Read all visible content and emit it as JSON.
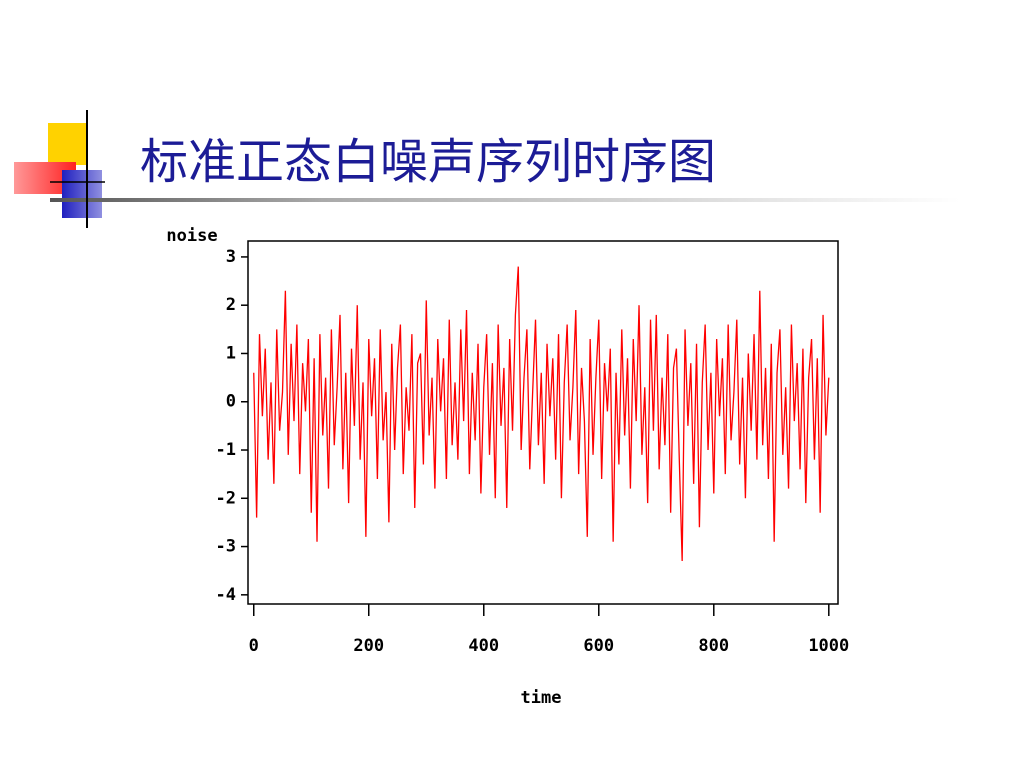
{
  "chart_data": {
    "type": "line",
    "title": "标准正态白噪声序列时序图",
    "y_label": "noise",
    "x_label": "time",
    "color": "#ff0000",
    "xlim": [
      -10,
      1016
    ],
    "ylim": [
      -4.19,
      3.33
    ],
    "xticks": [
      0,
      200,
      400,
      600,
      800,
      1000
    ],
    "yticks": [
      -4,
      -3,
      -2,
      -1,
      0,
      1,
      2,
      3
    ],
    "x": [
      0,
      5,
      10,
      15,
      20,
      25,
      30,
      35,
      40,
      45,
      50,
      55,
      60,
      65,
      70,
      75,
      80,
      85,
      90,
      95,
      100,
      105,
      110,
      115,
      120,
      125,
      130,
      135,
      140,
      145,
      150,
      155,
      160,
      165,
      170,
      175,
      180,
      185,
      190,
      195,
      200,
      205,
      210,
      215,
      220,
      225,
      230,
      235,
      240,
      245,
      250,
      255,
      260,
      265,
      270,
      275,
      280,
      285,
      290,
      295,
      300,
      305,
      310,
      315,
      320,
      325,
      330,
      335,
      340,
      345,
      350,
      355,
      360,
      365,
      370,
      375,
      380,
      385,
      390,
      395,
      400,
      405,
      410,
      415,
      420,
      425,
      430,
      435,
      440,
      445,
      450,
      455,
      460,
      465,
      470,
      475,
      480,
      485,
      490,
      495,
      500,
      505,
      510,
      515,
      520,
      525,
      530,
      535,
      540,
      545,
      550,
      555,
      560,
      565,
      570,
      575,
      580,
      585,
      590,
      595,
      600,
      605,
      610,
      615,
      620,
      625,
      630,
      635,
      640,
      645,
      650,
      655,
      660,
      665,
      670,
      675,
      680,
      685,
      690,
      695,
      700,
      705,
      710,
      715,
      720,
      725,
      730,
      735,
      740,
      745,
      750,
      755,
      760,
      765,
      770,
      775,
      780,
      785,
      790,
      795,
      800,
      805,
      810,
      815,
      820,
      825,
      830,
      835,
      840,
      845,
      850,
      855,
      860,
      865,
      870,
      875,
      880,
      885,
      890,
      895,
      900,
      905,
      910,
      915,
      920,
      925,
      930,
      935,
      940,
      945,
      950,
      955,
      960,
      965,
      970,
      975,
      980,
      985,
      990,
      995,
      1000
    ],
    "values": [
      0.6,
      -2.4,
      1.4,
      -0.3,
      1.1,
      -1.2,
      0.4,
      -1.7,
      1.5,
      -0.6,
      0.2,
      2.3,
      -1.1,
      1.2,
      -0.4,
      1.6,
      -1.5,
      0.8,
      -0.2,
      1.3,
      -2.3,
      0.9,
      -2.9,
      1.4,
      -0.7,
      0.5,
      -1.8,
      1.5,
      -0.9,
      0.3,
      1.8,
      -1.4,
      0.6,
      -2.1,
      1.1,
      -0.5,
      2.0,
      -1.2,
      0.4,
      -2.8,
      1.3,
      -0.3,
      0.9,
      -1.6,
      1.5,
      -0.8,
      0.2,
      -2.5,
      1.2,
      -1.0,
      0.7,
      1.6,
      -1.5,
      0.3,
      -0.6,
      1.4,
      -2.2,
      0.8,
      1.0,
      -1.3,
      2.1,
      -0.7,
      0.5,
      -1.8,
      1.3,
      -0.2,
      0.9,
      -1.6,
      1.7,
      -0.9,
      0.4,
      -1.2,
      1.5,
      -0.4,
      1.9,
      -1.5,
      0.6,
      -0.8,
      1.2,
      -1.9,
      0.3,
      1.4,
      -1.1,
      0.8,
      -2.0,
      1.6,
      -0.5,
      0.7,
      -2.2,
      1.3,
      -0.6,
      1.8,
      2.8,
      -1.0,
      0.5,
      1.5,
      -1.4,
      0.2,
      1.7,
      -0.9,
      0.6,
      -1.7,
      1.2,
      -0.3,
      0.9,
      -1.2,
      1.4,
      -2.0,
      0.4,
      1.6,
      -0.8,
      0.3,
      1.9,
      -1.5,
      0.7,
      -0.4,
      -2.8,
      1.3,
      -1.1,
      0.5,
      1.7,
      -1.6,
      0.8,
      -0.2,
      1.1,
      -2.9,
      0.6,
      -1.3,
      1.5,
      -0.7,
      0.9,
      -1.8,
      1.3,
      -0.4,
      2.0,
      -1.1,
      0.3,
      -2.1,
      1.7,
      -0.6,
      1.8,
      -1.4,
      0.5,
      -0.9,
      1.4,
      -2.3,
      0.7,
      1.1,
      -1.2,
      -3.3,
      1.5,
      -0.5,
      0.8,
      -1.7,
      1.2,
      -2.6,
      0.4,
      1.6,
      -1.0,
      0.6,
      -1.9,
      1.3,
      -0.3,
      0.9,
      -1.5,
      1.6,
      -0.8,
      0.2,
      1.7,
      -1.3,
      0.5,
      -2.0,
      1.0,
      -0.6,
      1.4,
      -1.2,
      2.3,
      -0.9,
      0.7,
      -1.6,
      1.2,
      -2.9,
      0.6,
      1.5,
      -1.1,
      0.3,
      -1.8,
      1.6,
      -0.4,
      0.8,
      -1.4,
      1.1,
      -2.1,
      0.5,
      1.3,
      -1.2,
      0.9,
      -2.3,
      1.8,
      -0.7,
      0.5
    ]
  }
}
